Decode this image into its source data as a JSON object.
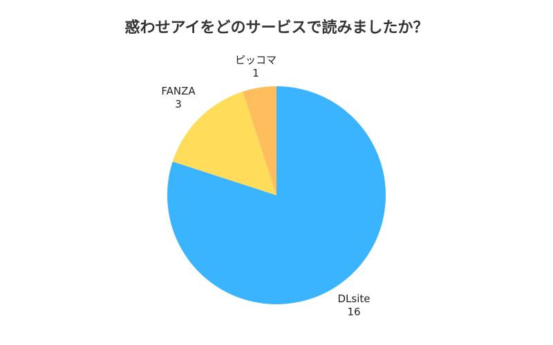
{
  "chart_data": {
    "type": "pie",
    "title": "惑わせアイをどのサービスで読みましたか？",
    "slices": [
      {
        "label": "DLsite",
        "value": 16,
        "color": "#3BB4FF"
      },
      {
        "label": "FANZA",
        "value": 3,
        "color": "#FFDC5A"
      },
      {
        "label": "ピッコマ",
        "value": 1,
        "color": "#FFBE5E"
      }
    ]
  }
}
